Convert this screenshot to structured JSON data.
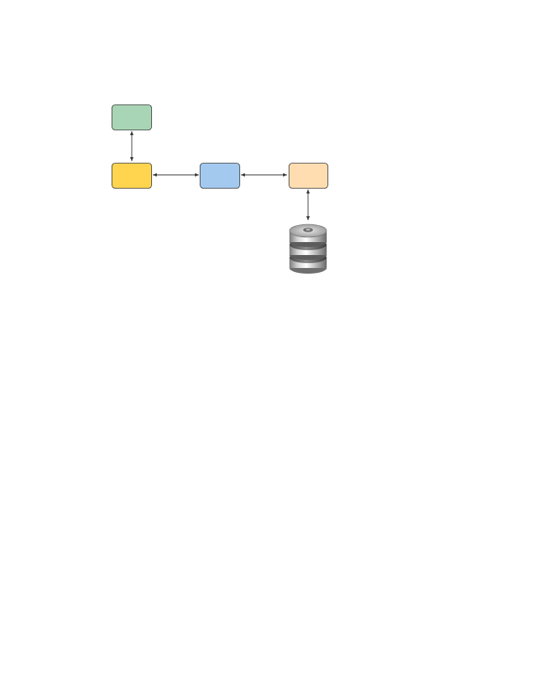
{
  "diagram": {
    "nodes": [
      {
        "id": "top-green",
        "label": "",
        "color": "#a8d5b5"
      },
      {
        "id": "left-yellow",
        "label": "",
        "color": "#ffd54f"
      },
      {
        "id": "center-blue",
        "label": "",
        "color": "#a3c9ee"
      },
      {
        "id": "right-peach",
        "label": "",
        "color": "#ffddb0"
      }
    ],
    "edges": [
      {
        "from": "top-green",
        "to": "left-yellow",
        "direction": "both"
      },
      {
        "from": "left-yellow",
        "to": "center-blue",
        "direction": "both"
      },
      {
        "from": "center-blue",
        "to": "right-peach",
        "direction": "both"
      },
      {
        "from": "right-peach",
        "to": "database",
        "direction": "both"
      }
    ],
    "database_icon": "database-icon"
  }
}
